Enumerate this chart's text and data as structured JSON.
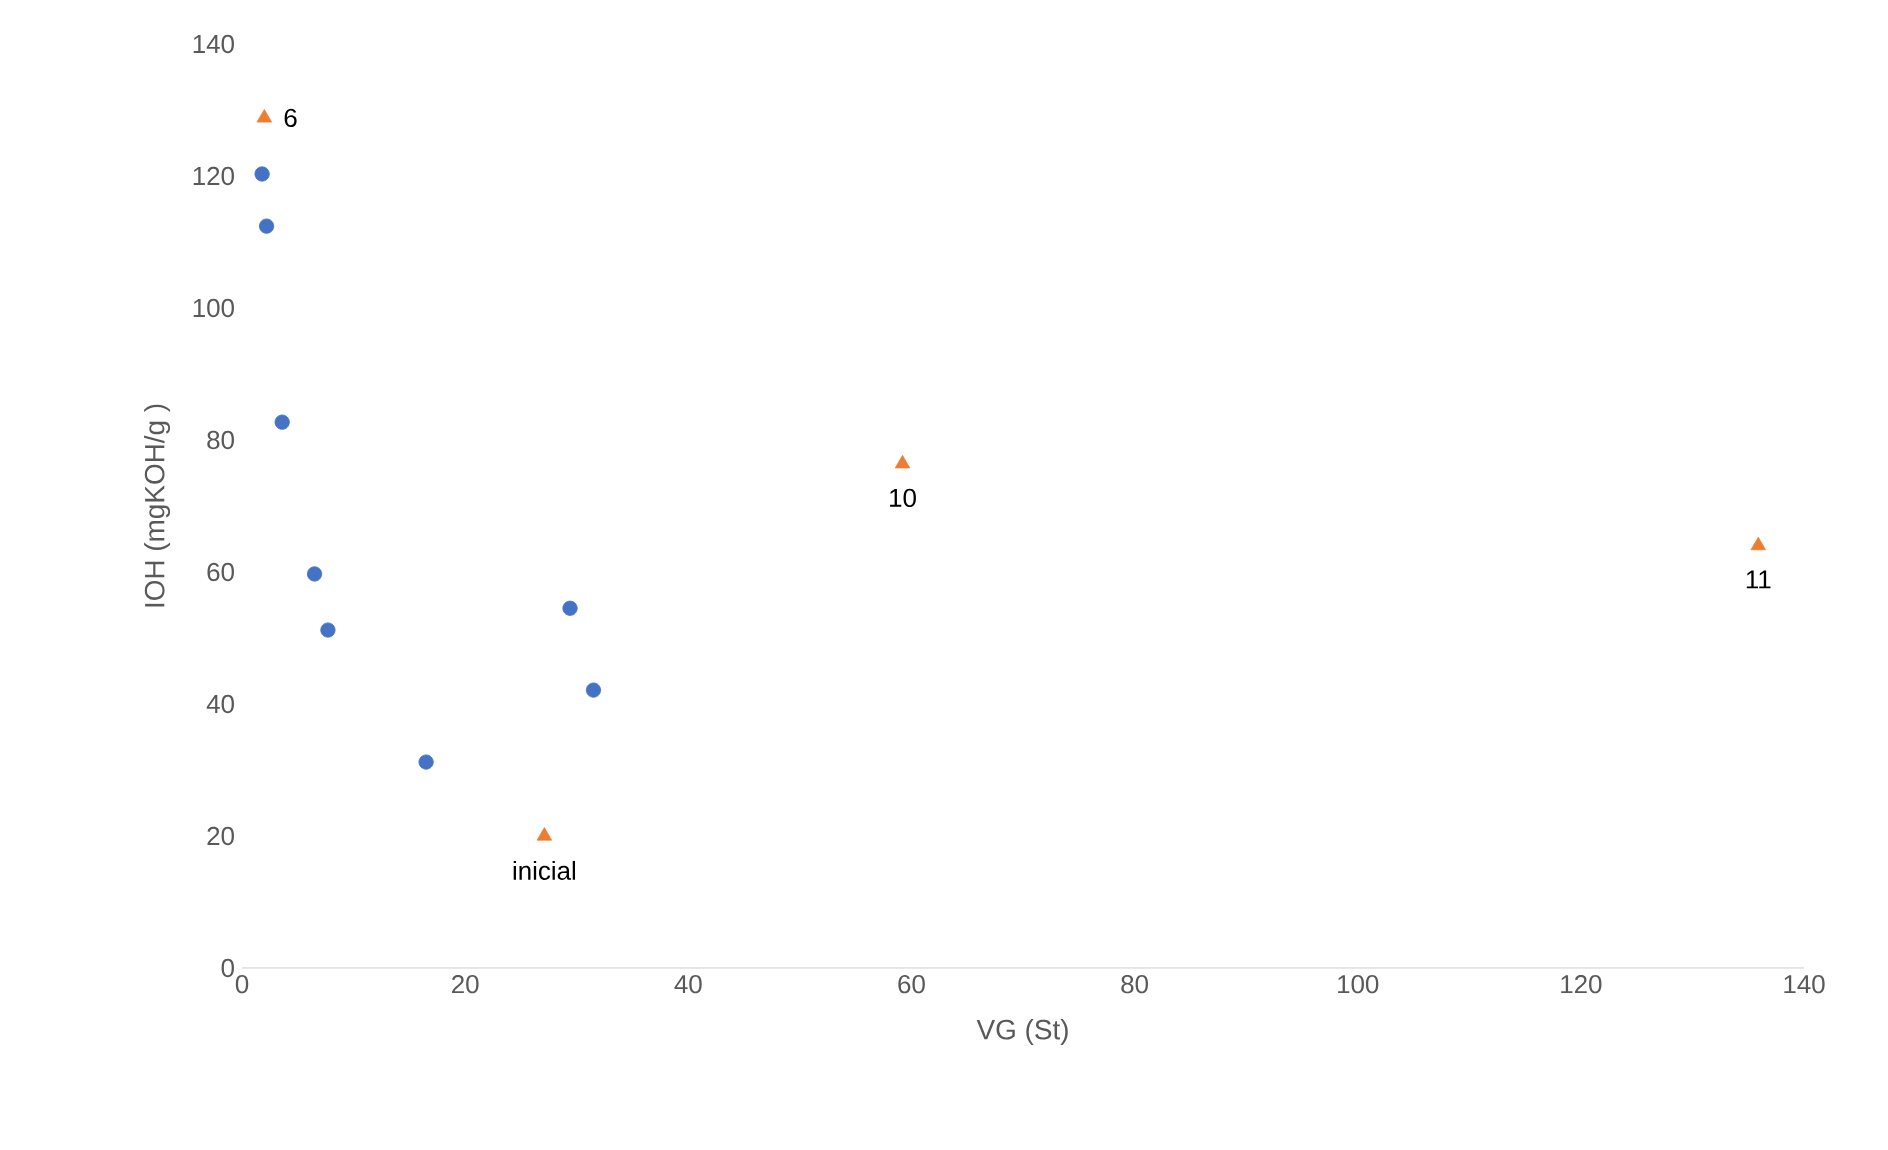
{
  "chart_data": {
    "type": "scatter",
    "xlabel": "VG (St)",
    "ylabel": "IOH (mgKOH/g )",
    "xlim": [
      0,
      140
    ],
    "ylim": [
      0,
      140
    ],
    "xticks": [
      0,
      20,
      40,
      60,
      80,
      100,
      120,
      140
    ],
    "yticks": [
      0,
      20,
      40,
      60,
      80,
      100,
      120,
      140
    ],
    "grid": false,
    "series": [
      {
        "color": "#4472c4",
        "marker": "circle",
        "x": [
          1.8,
          2.2,
          3.6,
          6.5,
          7.7,
          16.5,
          29.4,
          31.5
        ],
        "values": [
          120.3,
          112.4,
          82.7,
          59.7,
          51.2,
          31.2,
          54.5,
          42.1
        ]
      },
      {
        "color": "#ed7d31",
        "marker": "triangle",
        "x": [
          2.0,
          27.1,
          59.2,
          135.9
        ],
        "values": [
          128.8,
          20,
          76.4,
          64
        ]
      }
    ],
    "annotations": [
      {
        "text": "6",
        "x": 2.0,
        "y": 128.8
      },
      {
        "text": "inicial",
        "x": 27.1,
        "y": 20
      },
      {
        "text": "10",
        "x": 59.2,
        "y": 76.4
      },
      {
        "text": "11",
        "x": 135.9,
        "y": 64
      }
    ]
  }
}
